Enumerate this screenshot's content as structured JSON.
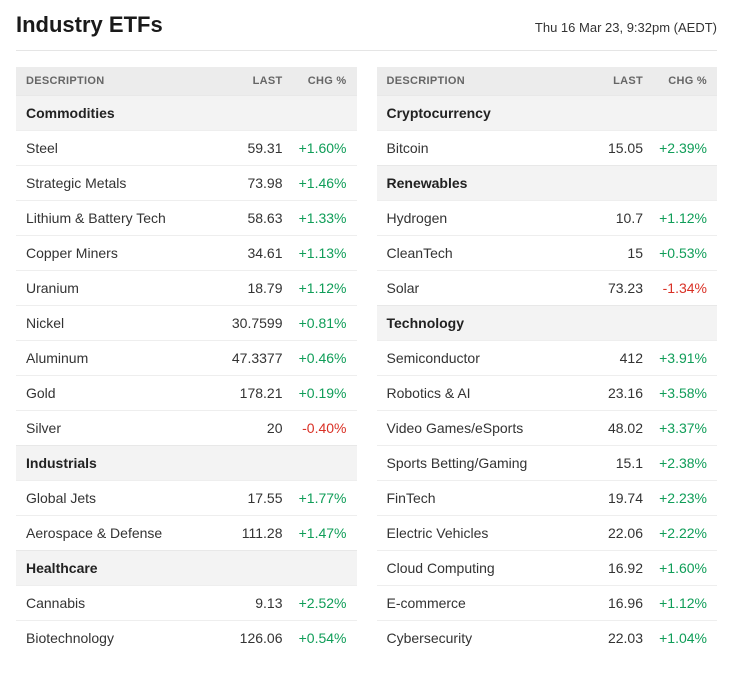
{
  "title": "Industry ETFs",
  "timestamp": "Thu 16 Mar 23, 9:32pm (AEDT)",
  "columns_header": {
    "description": "DESCRIPTION",
    "last": "LAST",
    "chg": "CHG %"
  },
  "colors": {
    "positive": "#0f9d58",
    "negative": "#d93025",
    "text": "#1a1a1a",
    "muted": "#666666",
    "header_bg": "#ececec",
    "section_bg": "#f3f3f3",
    "row_border": "#eeeeee",
    "background": "#ffffff"
  },
  "typography": {
    "title_fontsize": 22,
    "timestamp_fontsize": 13,
    "header_fontsize": 11,
    "body_fontsize": 14,
    "font_family": "-apple-system, Segoe UI, Helvetica, Arial"
  },
  "left": [
    {
      "type": "section",
      "label": "Commodities"
    },
    {
      "type": "row",
      "desc": "Steel",
      "last": "59.31",
      "chg": "+1.60%",
      "dir": "up"
    },
    {
      "type": "row",
      "desc": "Strategic Metals",
      "last": "73.98",
      "chg": "+1.46%",
      "dir": "up"
    },
    {
      "type": "row",
      "desc": "Lithium & Battery Tech",
      "last": "58.63",
      "chg": "+1.33%",
      "dir": "up"
    },
    {
      "type": "row",
      "desc": "Copper Miners",
      "last": "34.61",
      "chg": "+1.13%",
      "dir": "up"
    },
    {
      "type": "row",
      "desc": "Uranium",
      "last": "18.79",
      "chg": "+1.12%",
      "dir": "up"
    },
    {
      "type": "row",
      "desc": "Nickel",
      "last": "30.7599",
      "chg": "+0.81%",
      "dir": "up"
    },
    {
      "type": "row",
      "desc": "Aluminum",
      "last": "47.3377",
      "chg": "+0.46%",
      "dir": "up"
    },
    {
      "type": "row",
      "desc": "Gold",
      "last": "178.21",
      "chg": "+0.19%",
      "dir": "up"
    },
    {
      "type": "row",
      "desc": "Silver",
      "last": "20",
      "chg": "-0.40%",
      "dir": "down"
    },
    {
      "type": "section",
      "label": "Industrials"
    },
    {
      "type": "row",
      "desc": "Global Jets",
      "last": "17.55",
      "chg": "+1.77%",
      "dir": "up"
    },
    {
      "type": "row",
      "desc": "Aerospace & Defense",
      "last": "111.28",
      "chg": "+1.47%",
      "dir": "up"
    },
    {
      "type": "section",
      "label": "Healthcare"
    },
    {
      "type": "row",
      "desc": "Cannabis",
      "last": "9.13",
      "chg": "+2.52%",
      "dir": "up"
    },
    {
      "type": "row",
      "desc": "Biotechnology",
      "last": "126.06",
      "chg": "+0.54%",
      "dir": "up"
    }
  ],
  "right": [
    {
      "type": "section",
      "label": "Cryptocurrency"
    },
    {
      "type": "row",
      "desc": "Bitcoin",
      "last": "15.05",
      "chg": "+2.39%",
      "dir": "up"
    },
    {
      "type": "section",
      "label": "Renewables"
    },
    {
      "type": "row",
      "desc": "Hydrogen",
      "last": "10.7",
      "chg": "+1.12%",
      "dir": "up"
    },
    {
      "type": "row",
      "desc": "CleanTech",
      "last": "15",
      "chg": "+0.53%",
      "dir": "up"
    },
    {
      "type": "row",
      "desc": "Solar",
      "last": "73.23",
      "chg": "-1.34%",
      "dir": "down"
    },
    {
      "type": "section",
      "label": "Technology"
    },
    {
      "type": "row",
      "desc": "Semiconductor",
      "last": "412",
      "chg": "+3.91%",
      "dir": "up"
    },
    {
      "type": "row",
      "desc": "Robotics & AI",
      "last": "23.16",
      "chg": "+3.58%",
      "dir": "up"
    },
    {
      "type": "row",
      "desc": "Video Games/eSports",
      "last": "48.02",
      "chg": "+3.37%",
      "dir": "up"
    },
    {
      "type": "row",
      "desc": "Sports Betting/Gaming",
      "last": "15.1",
      "chg": "+2.38%",
      "dir": "up"
    },
    {
      "type": "row",
      "desc": "FinTech",
      "last": "19.74",
      "chg": "+2.23%",
      "dir": "up"
    },
    {
      "type": "row",
      "desc": "Electric Vehicles",
      "last": "22.06",
      "chg": "+2.22%",
      "dir": "up"
    },
    {
      "type": "row",
      "desc": "Cloud Computing",
      "last": "16.92",
      "chg": "+1.60%",
      "dir": "up"
    },
    {
      "type": "row",
      "desc": "E-commerce",
      "last": "16.96",
      "chg": "+1.12%",
      "dir": "up"
    },
    {
      "type": "row",
      "desc": "Cybersecurity",
      "last": "22.03",
      "chg": "+1.04%",
      "dir": "up"
    }
  ]
}
